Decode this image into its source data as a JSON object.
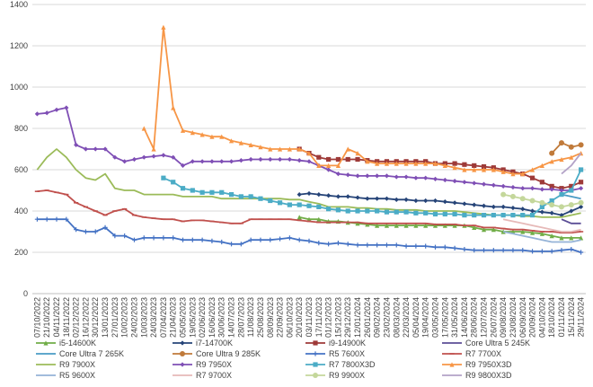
{
  "chart_data": {
    "type": "line",
    "title": "",
    "xlabel": "",
    "ylabel": "",
    "ylim": [
      0,
      1400
    ],
    "yticks": [
      0,
      200,
      400,
      600,
      800,
      1000,
      1200,
      1400
    ],
    "grid": true,
    "legend_placement": "bottom",
    "x_labels": [
      "07/10/2022",
      "21/10/2022",
      "04/11/2022",
      "18/11/2022",
      "02/12/2022",
      "16/12/2022",
      "30/12/2022",
      "13/01/2023",
      "27/01/2023",
      "10/02/2023",
      "24/02/2023",
      "10/03/2023",
      "24/03/2023",
      "07/04/2023",
      "21/04/2023",
      "05/05/2023",
      "19/05/2023",
      "02/06/2023",
      "16/06/2023",
      "30/06/2023",
      "14/07/2023",
      "28/07/2023",
      "11/08/2023",
      "25/08/2023",
      "08/09/2023",
      "22/09/2023",
      "06/10/2023",
      "20/10/2023",
      "03/11/2023",
      "17/11/2023",
      "01/12/2023",
      "15/12/2023",
      "29/12/2023",
      "12/01/2024",
      "26/01/2024",
      "09/02/2024",
      "23/02/2024",
      "08/03/2024",
      "22/03/2024",
      "05/04/2024",
      "19/04/2024",
      "03/05/2024",
      "17/05/2024",
      "31/05/2024",
      "14/06/2024",
      "28/06/2024",
      "12/07/2024",
      "26/07/2024",
      "09/08/2024",
      "23/08/2024",
      "06/09/2024",
      "20/09/2024",
      "04/10/2024",
      "18/10/2024",
      "01/11/2024",
      "15/11/2024",
      "29/11/2024"
    ],
    "series": [
      {
        "name": "i5-14600K",
        "color": "#70ad47",
        "marker": "triangle",
        "values": [
          null,
          null,
          null,
          null,
          null,
          null,
          null,
          null,
          null,
          null,
          null,
          null,
          null,
          null,
          null,
          null,
          null,
          null,
          null,
          null,
          null,
          null,
          null,
          null,
          null,
          null,
          null,
          370,
          360,
          360,
          350,
          350,
          345,
          340,
          335,
          330,
          330,
          330,
          330,
          330,
          330,
          330,
          330,
          330,
          330,
          320,
          310,
          310,
          300,
          300,
          300,
          295,
          290,
          280,
          270,
          270,
          270
        ]
      },
      {
        "name": "i7-14700K",
        "color": "#264478",
        "marker": "diamond",
        "values": [
          null,
          null,
          null,
          null,
          null,
          null,
          null,
          null,
          null,
          null,
          null,
          null,
          null,
          null,
          null,
          null,
          null,
          null,
          null,
          null,
          null,
          null,
          null,
          null,
          null,
          null,
          null,
          480,
          485,
          480,
          475,
          470,
          470,
          465,
          460,
          460,
          460,
          455,
          455,
          450,
          450,
          450,
          445,
          440,
          435,
          430,
          425,
          420,
          420,
          415,
          410,
          400,
          395,
          390,
          380,
          400,
          420
        ]
      },
      {
        "name": "i9-14900K",
        "color": "#9e3a38",
        "marker": "square",
        "values": [
          null,
          null,
          null,
          null,
          null,
          null,
          null,
          null,
          null,
          null,
          null,
          null,
          null,
          null,
          null,
          null,
          null,
          null,
          null,
          null,
          null,
          null,
          null,
          null,
          null,
          null,
          null,
          700,
          680,
          660,
          650,
          650,
          650,
          650,
          645,
          640,
          640,
          640,
          640,
          640,
          640,
          630,
          630,
          630,
          625,
          620,
          615,
          610,
          600,
          590,
          580,
          560,
          540,
          520,
          510,
          520,
          540
        ]
      },
      {
        "name": "Core Ultra 5 245K",
        "color": "#5b4e96",
        "marker": "line",
        "values": [
          null,
          null,
          null,
          null,
          null,
          null,
          null,
          null,
          null,
          null,
          null,
          null,
          null,
          null,
          null,
          null,
          null,
          null,
          null,
          null,
          null,
          null,
          null,
          null,
          null,
          null,
          null,
          null,
          null,
          null,
          null,
          null,
          null,
          null,
          null,
          null,
          null,
          null,
          null,
          null,
          null,
          null,
          null,
          null,
          null,
          null,
          null,
          null,
          null,
          null,
          null,
          null,
          null,
          null,
          360,
          340,
          340
        ]
      },
      {
        "name": "Core Ultra 7 265K",
        "color": "#4a9bc4",
        "marker": "line",
        "values": [
          null,
          null,
          null,
          null,
          null,
          null,
          null,
          null,
          null,
          null,
          null,
          null,
          null,
          null,
          null,
          null,
          null,
          null,
          null,
          null,
          null,
          null,
          null,
          null,
          null,
          null,
          null,
          null,
          null,
          null,
          null,
          null,
          null,
          null,
          null,
          null,
          null,
          null,
          null,
          null,
          null,
          null,
          null,
          null,
          null,
          null,
          null,
          null,
          null,
          null,
          null,
          null,
          null,
          null,
          480,
          470,
          460
        ]
      },
      {
        "name": "Core Ultra 9 285K",
        "color": "#c07a3a",
        "marker": "circle",
        "values": [
          null,
          null,
          null,
          null,
          null,
          null,
          null,
          null,
          null,
          null,
          null,
          null,
          null,
          null,
          null,
          null,
          null,
          null,
          null,
          null,
          null,
          null,
          null,
          null,
          null,
          null,
          null,
          null,
          null,
          null,
          null,
          null,
          null,
          null,
          null,
          null,
          null,
          null,
          null,
          null,
          null,
          null,
          null,
          null,
          null,
          null,
          null,
          null,
          null,
          null,
          null,
          null,
          null,
          680,
          730,
          710,
          720
        ]
      },
      {
        "name": "R5 7600X",
        "color": "#4472c4",
        "marker": "plus",
        "values": [
          360,
          360,
          360,
          360,
          310,
          300,
          300,
          320,
          280,
          280,
          260,
          270,
          270,
          270,
          270,
          260,
          260,
          260,
          255,
          250,
          240,
          240,
          260,
          260,
          260,
          265,
          270,
          260,
          255,
          245,
          240,
          245,
          240,
          235,
          235,
          235,
          235,
          235,
          230,
          230,
          230,
          225,
          225,
          220,
          215,
          210,
          210,
          210,
          210,
          210,
          210,
          205,
          205,
          205,
          210,
          215,
          200
        ]
      },
      {
        "name": "R7 7700X",
        "color": "#c0504d",
        "marker": "dash",
        "values": [
          495,
          500,
          490,
          480,
          440,
          420,
          400,
          380,
          400,
          410,
          380,
          370,
          365,
          360,
          360,
          350,
          355,
          355,
          350,
          345,
          340,
          340,
          360,
          360,
          360,
          360,
          360,
          355,
          350,
          345,
          345,
          345,
          345,
          345,
          340,
          340,
          340,
          340,
          340,
          340,
          340,
          335,
          335,
          335,
          330,
          330,
          320,
          320,
          315,
          310,
          310,
          305,
          300,
          300,
          295,
          295,
          300
        ]
      },
      {
        "name": "R9 7900X",
        "color": "#9bbb59",
        "marker": "line",
        "values": [
          600,
          660,
          700,
          660,
          600,
          560,
          550,
          580,
          510,
          500,
          500,
          480,
          480,
          480,
          480,
          470,
          470,
          470,
          470,
          460,
          460,
          460,
          460,
          460,
          460,
          460,
          455,
          455,
          445,
          435,
          420,
          420,
          420,
          415,
          415,
          410,
          410,
          405,
          405,
          405,
          400,
          400,
          400,
          400,
          395,
          390,
          385,
          380,
          380,
          380,
          375,
          375,
          370,
          370,
          370,
          380,
          390
        ]
      },
      {
        "name": "R9 7950X",
        "color": "#7f4fb5",
        "marker": "diamond",
        "values": [
          870,
          875,
          890,
          900,
          720,
          700,
          700,
          700,
          660,
          640,
          650,
          660,
          665,
          670,
          660,
          620,
          640,
          640,
          640,
          640,
          640,
          645,
          650,
          650,
          650,
          650,
          650,
          645,
          640,
          620,
          600,
          580,
          575,
          570,
          570,
          570,
          570,
          565,
          565,
          560,
          560,
          555,
          550,
          545,
          540,
          535,
          530,
          525,
          520,
          515,
          510,
          510,
          505,
          505,
          500,
          500,
          510
        ]
      },
      {
        "name": "R7 7800X3D",
        "color": "#4bacc6",
        "marker": "square",
        "values": [
          null,
          null,
          null,
          null,
          null,
          null,
          null,
          null,
          null,
          null,
          null,
          null,
          null,
          560,
          540,
          510,
          500,
          490,
          490,
          490,
          480,
          470,
          470,
          460,
          450,
          440,
          430,
          430,
          425,
          420,
          410,
          405,
          400,
          400,
          400,
          400,
          395,
          395,
          395,
          390,
          390,
          385,
          385,
          385,
          380,
          380,
          380,
          380,
          380,
          380,
          380,
          380,
          420,
          450,
          480,
          500,
          600
        ]
      },
      {
        "name": "R9 7950X3D",
        "color": "#f79646",
        "marker": "triangle",
        "values": [
          null,
          null,
          null,
          null,
          null,
          null,
          null,
          null,
          null,
          null,
          null,
          800,
          700,
          1290,
          900,
          790,
          780,
          770,
          760,
          760,
          740,
          730,
          720,
          710,
          700,
          700,
          700,
          700,
          680,
          620,
          620,
          620,
          700,
          680,
          640,
          630,
          630,
          630,
          630,
          630,
          630,
          630,
          620,
          610,
          600,
          600,
          600,
          600,
          590,
          580,
          580,
          600,
          620,
          640,
          650,
          660,
          680
        ]
      },
      {
        "name": "R5 9600X",
        "color": "#95b3d7",
        "marker": "line",
        "values": [
          null,
          null,
          null,
          null,
          null,
          null,
          null,
          null,
          null,
          null,
          null,
          null,
          null,
          null,
          null,
          null,
          null,
          null,
          null,
          null,
          null,
          null,
          null,
          null,
          null,
          null,
          null,
          null,
          null,
          null,
          null,
          null,
          null,
          null,
          null,
          null,
          null,
          null,
          null,
          null,
          null,
          null,
          null,
          null,
          null,
          null,
          null,
          null,
          300,
          290,
          280,
          270,
          260,
          250,
          250,
          250,
          260
        ]
      },
      {
        "name": "R7 9700X",
        "color": "#e6b9b8",
        "marker": "line",
        "values": [
          null,
          null,
          null,
          null,
          null,
          null,
          null,
          null,
          null,
          null,
          null,
          null,
          null,
          null,
          null,
          null,
          null,
          null,
          null,
          null,
          null,
          null,
          null,
          null,
          null,
          null,
          null,
          null,
          null,
          null,
          null,
          null,
          null,
          null,
          null,
          null,
          null,
          null,
          null,
          null,
          null,
          null,
          null,
          null,
          null,
          null,
          null,
          null,
          360,
          350,
          340,
          330,
          320,
          310,
          300,
          300,
          310
        ]
      },
      {
        "name": "R9 9900X",
        "color": "#c4d79b",
        "marker": "circle",
        "values": [
          null,
          null,
          null,
          null,
          null,
          null,
          null,
          null,
          null,
          null,
          null,
          null,
          null,
          null,
          null,
          null,
          null,
          null,
          null,
          null,
          null,
          null,
          null,
          null,
          null,
          null,
          null,
          null,
          null,
          null,
          null,
          null,
          null,
          null,
          null,
          null,
          null,
          null,
          null,
          null,
          null,
          null,
          null,
          null,
          null,
          null,
          null,
          null,
          480,
          470,
          460,
          450,
          440,
          430,
          420,
          430,
          440
        ]
      },
      {
        "name": "R9 9800X3D",
        "color": "#b3a2c7",
        "marker": "line",
        "values": [
          null,
          null,
          null,
          null,
          null,
          null,
          null,
          null,
          null,
          null,
          null,
          null,
          null,
          null,
          null,
          null,
          null,
          null,
          null,
          null,
          null,
          null,
          null,
          null,
          null,
          null,
          null,
          null,
          null,
          null,
          null,
          null,
          null,
          null,
          null,
          null,
          null,
          null,
          null,
          null,
          null,
          null,
          null,
          null,
          null,
          null,
          null,
          null,
          null,
          null,
          null,
          null,
          null,
          null,
          580,
          620,
          680
        ]
      }
    ]
  }
}
